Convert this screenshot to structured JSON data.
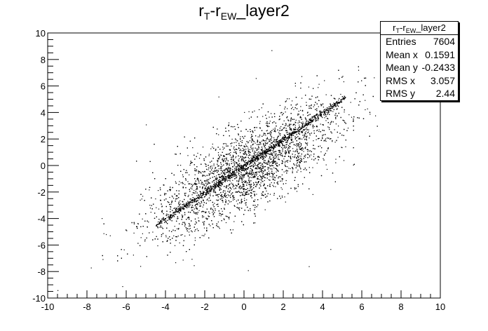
{
  "title": {
    "base": "r",
    "sub1": "T",
    "mid": "-r",
    "sub2": "EW",
    "tail": "_layer2"
  },
  "stats_box": {
    "name": {
      "base": "r",
      "sub1": "T",
      "mid": "-r",
      "sub2": "EW",
      "tail": "_layer2"
    },
    "rows": [
      {
        "key": "Entries",
        "value": "7604"
      },
      {
        "key": "Mean x",
        "value": "0.1591"
      },
      {
        "key": "Mean y",
        "value": "-0.2433"
      },
      {
        "key": "RMS x",
        "value": "3.057"
      },
      {
        "key": "RMS y",
        "value": "2.44"
      }
    ]
  },
  "chart_data": {
    "type": "scatter",
    "title": "r_T-r_EW_layer2",
    "xlabel": "",
    "ylabel": "",
    "xlim": [
      -10,
      10
    ],
    "ylim": [
      -10,
      10
    ],
    "x_ticks": [
      "-10",
      "-8",
      "-6",
      "-4",
      "-2",
      "0",
      "2",
      "4",
      "6",
      "8",
      "10"
    ],
    "y_ticks": [
      "-10",
      "-8",
      "-6",
      "-4",
      "-2",
      "0",
      "2",
      "4",
      "6",
      "8",
      "10"
    ],
    "grid": false,
    "legend": "stats box top-right",
    "entries": 7604,
    "mean_x": 0.1591,
    "mean_y": -0.2433,
    "rms_x": 3.057,
    "rms_y": 2.44,
    "trend_line": {
      "x": [
        -4.5,
        5.2
      ],
      "y": [
        -4.5,
        5.2
      ]
    },
    "band_corners": {
      "x": [
        -6.8,
        -2,
        2,
        6.8
      ],
      "y": [
        -6.5,
        -3.5,
        3.5,
        6.5
      ]
    },
    "outliers": [
      {
        "x": -7.8,
        "y": -7.7
      },
      {
        "x": -6.2,
        "y": -9.1
      },
      {
        "x": 1.4,
        "y": 8.7
      },
      {
        "x": 3.3,
        "y": -7.6
      },
      {
        "x": -3.5,
        "y": -7.3
      },
      {
        "x": 6.4,
        "y": 3.9
      },
      {
        "x": -1.3,
        "y": 5.2
      },
      {
        "x": 4.4,
        "y": -6.3
      },
      {
        "x": -5.0,
        "y": 3.1
      },
      {
        "x": 0.2,
        "y": -7.9
      },
      {
        "x": 0.6,
        "y": 6.6
      },
      {
        "x": -9.5,
        "y": -9.4
      }
    ]
  }
}
